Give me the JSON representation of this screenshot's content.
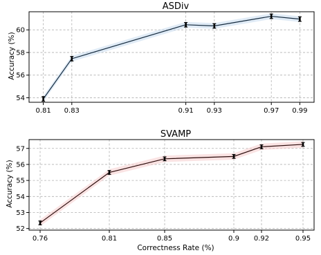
{
  "chart_data": [
    {
      "type": "line",
      "title": "ASDiv",
      "xlabel": "",
      "ylabel": "Accuracy (%)",
      "x": [
        0.81,
        0.83,
        0.91,
        0.93,
        0.97,
        0.99
      ],
      "x_tick_labels": [
        "0.81",
        "0.83",
        "0.91",
        "0.93",
        "0.97",
        "0.99"
      ],
      "y_ticks": [
        54,
        56,
        58,
        60
      ],
      "xlim": [
        0.8,
        1.0
      ],
      "ylim": [
        53.6,
        61.6
      ],
      "grid": true,
      "series": [
        {
          "values": [
            53.9,
            57.45,
            60.45,
            60.35,
            61.2,
            60.95
          ],
          "error": [
            0.2,
            0.2,
            0.2,
            0.2,
            0.2,
            0.2
          ],
          "band": 0.25,
          "line_color": "#13293d",
          "band_color": "#c6dbef"
        }
      ]
    },
    {
      "type": "line",
      "title": "SVAMP",
      "xlabel": "Correctness Rate (%)",
      "ylabel": "Accuracy (%)",
      "x": [
        0.76,
        0.81,
        0.85,
        0.9,
        0.92,
        0.95
      ],
      "x_tick_labels": [
        "0.76",
        "0.81",
        "0.85",
        "0.9",
        "0.92",
        "0.95"
      ],
      "y_ticks": [
        52,
        53,
        54,
        55,
        56,
        57
      ],
      "xlim": [
        0.752,
        0.958
      ],
      "ylim": [
        51.9,
        57.55
      ],
      "grid": true,
      "series": [
        {
          "values": [
            52.35,
            55.5,
            56.35,
            56.5,
            57.1,
            57.25
          ],
          "error": [
            0.12,
            0.12,
            0.12,
            0.12,
            0.12,
            0.12
          ],
          "band": 0.2,
          "line_color": "#2a0a0a",
          "band_color": "#f6cccc"
        }
      ]
    }
  ]
}
